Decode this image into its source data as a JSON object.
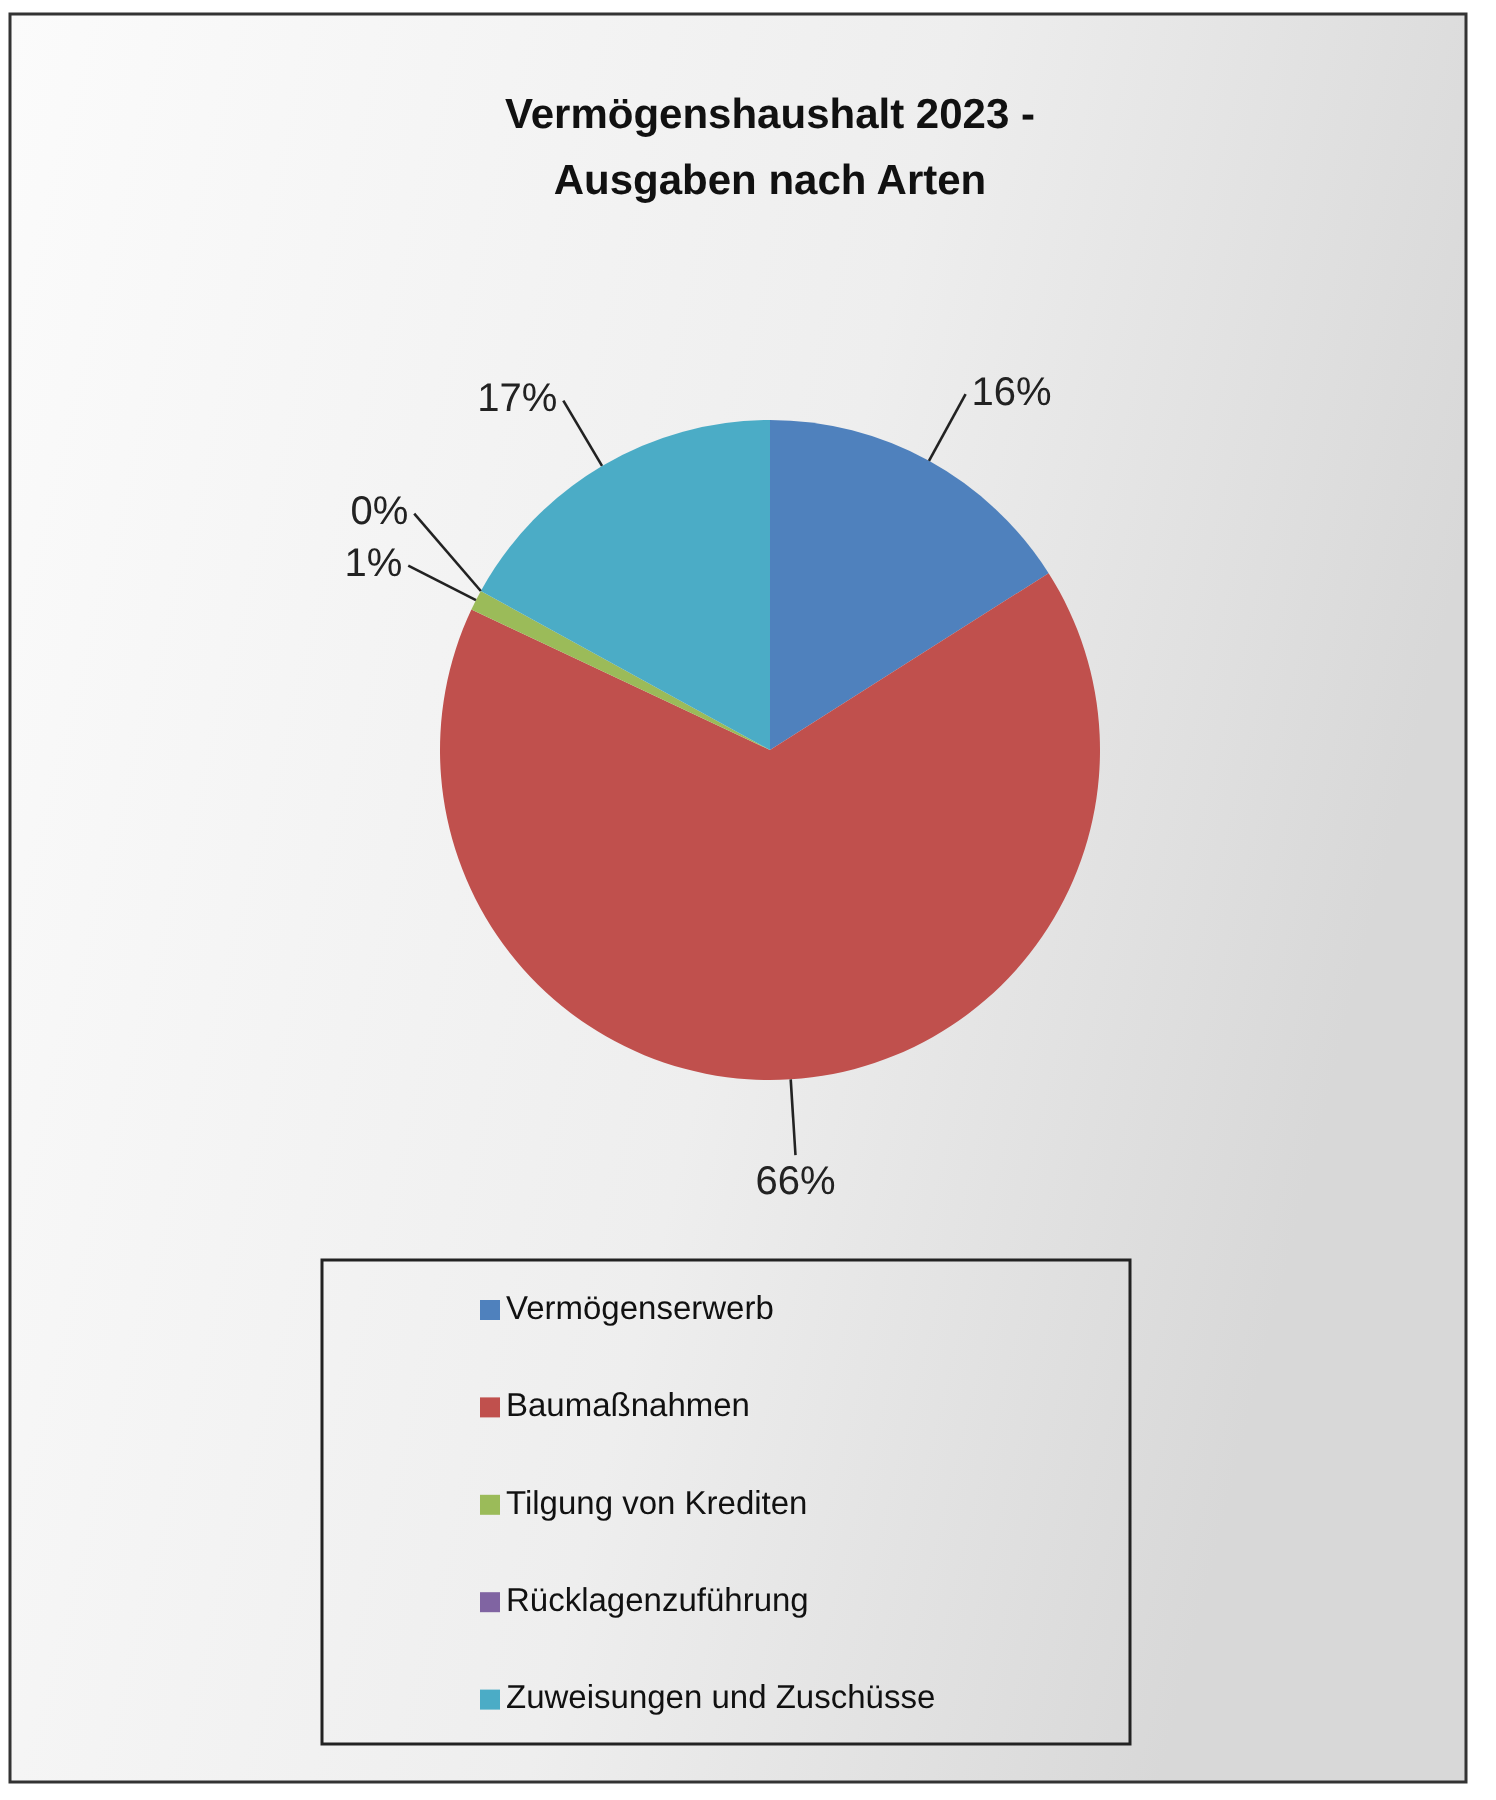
{
  "chart_data": {
    "type": "pie",
    "title": "Vermögenshaushalt 2023 - Ausgaben nach Arten",
    "categories": [
      "Vermögenserwerb",
      "Baumaßnahmen",
      "Tilgung von Krediten",
      "Rücklagenzuführung",
      "Zuweisungen und Zuschüsse"
    ],
    "values": [
      16,
      66,
      1,
      0,
      17
    ],
    "colors": [
      "#4f81bd",
      "#c0504d",
      "#9bbb59",
      "#8064a2",
      "#4bacc6"
    ],
    "value_labels": [
      "16%",
      "66%",
      "1%",
      "0%",
      "17%"
    ],
    "legend": "bottom"
  }
}
